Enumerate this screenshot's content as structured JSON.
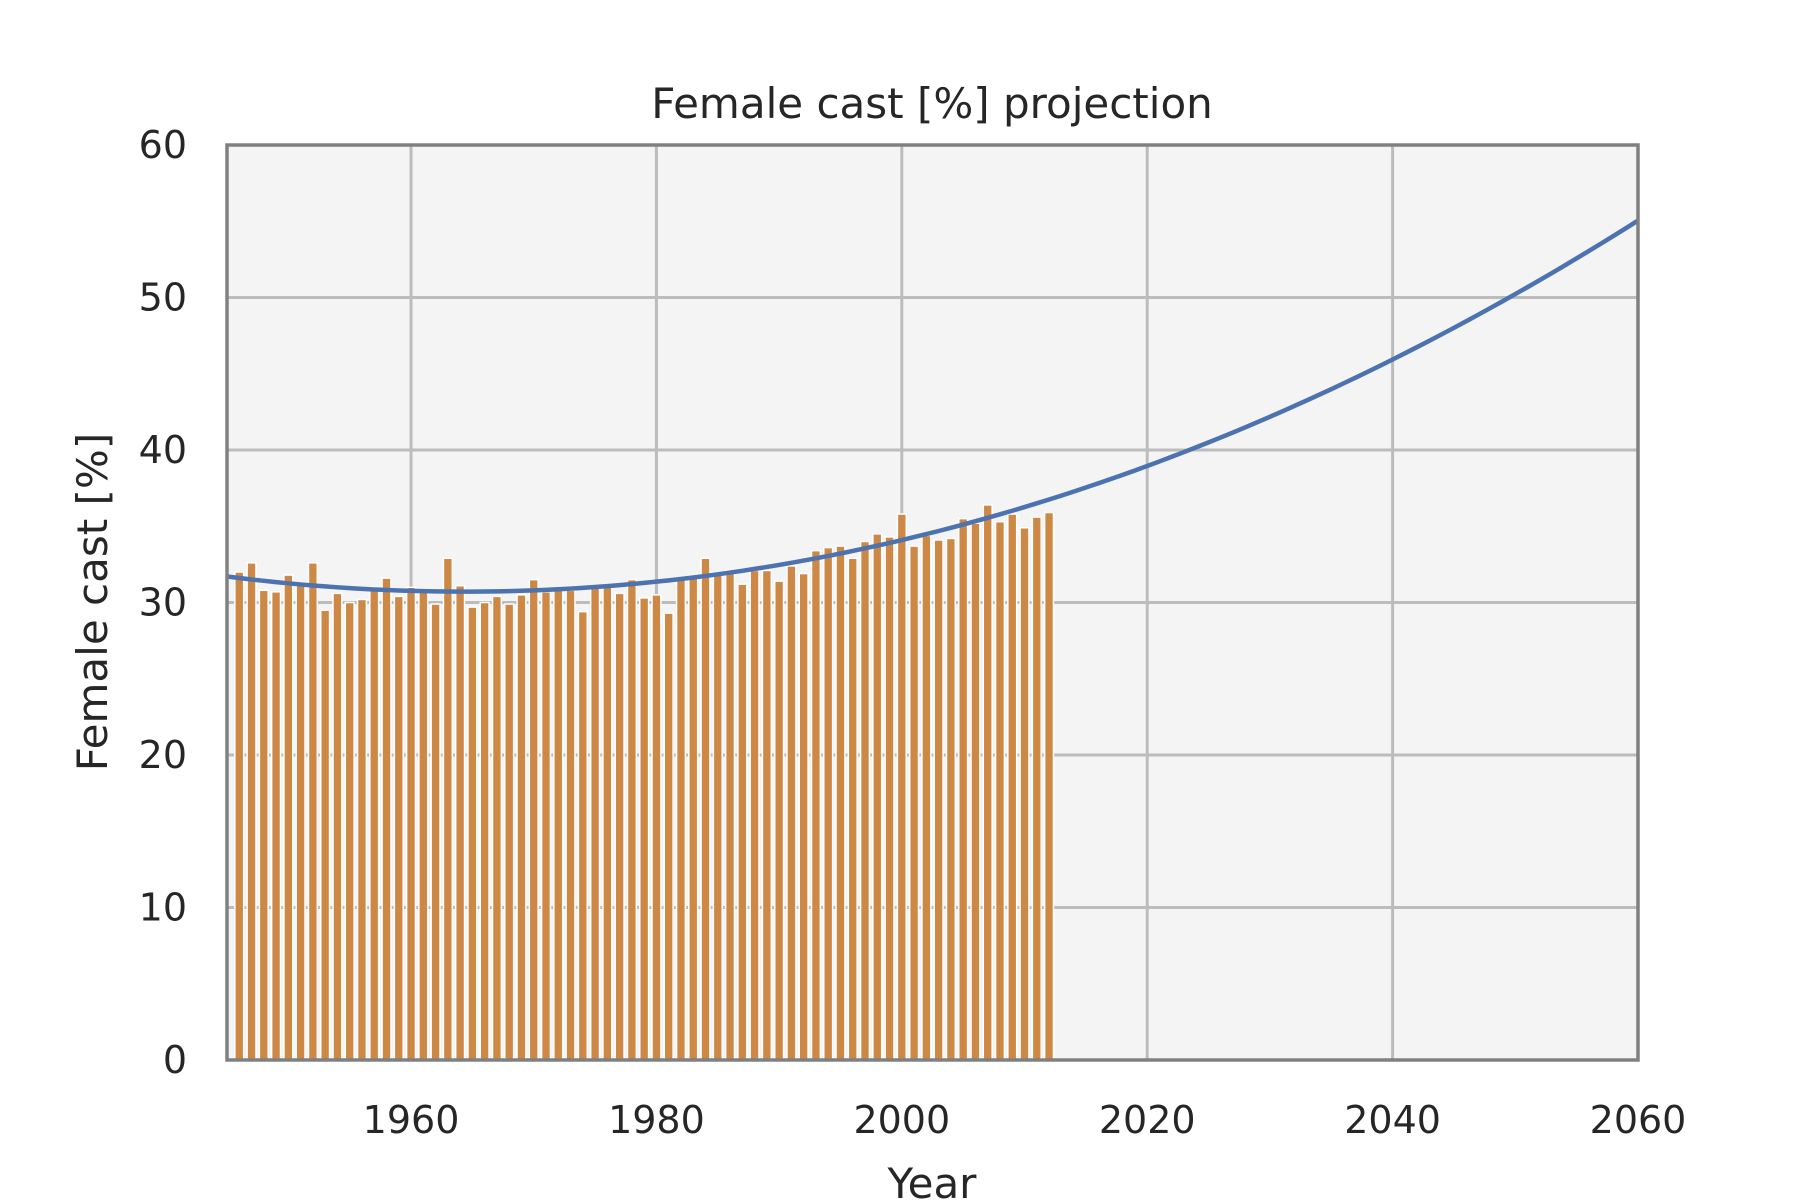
{
  "chart_data": {
    "type": "bar",
    "title": "Female cast [%] projection",
    "xlabel": "Year",
    "ylabel": "Female cast [%]",
    "xlim": [
      1945,
      2060
    ],
    "ylim": [
      0,
      60
    ],
    "xticks": [
      1960,
      1980,
      2000,
      2020,
      2040,
      2060
    ],
    "yticks": [
      0,
      10,
      20,
      30,
      40,
      50,
      60
    ],
    "grid": true,
    "background": "#f4f4f4",
    "colors": {
      "bars": "#cc8844",
      "trend": "#4c72b0",
      "frame": "#808080",
      "grid": "#bcbcbc"
    },
    "x": [
      1946,
      1947,
      1948,
      1949,
      1950,
      1951,
      1952,
      1953,
      1954,
      1955,
      1956,
      1957,
      1958,
      1959,
      1960,
      1961,
      1962,
      1963,
      1964,
      1965,
      1966,
      1967,
      1968,
      1969,
      1970,
      1971,
      1972,
      1973,
      1974,
      1975,
      1976,
      1977,
      1978,
      1979,
      1980,
      1981,
      1982,
      1983,
      1984,
      1985,
      1986,
      1987,
      1988,
      1989,
      1990,
      1991,
      1992,
      1993,
      1994,
      1995,
      1996,
      1997,
      1998,
      1999,
      2000,
      2001,
      2002,
      2003,
      2004,
      2005,
      2006,
      2007,
      2008,
      2009,
      2010,
      2011,
      2012
    ],
    "values": [
      32.0,
      32.6,
      30.8,
      30.7,
      31.8,
      31.3,
      32.6,
      29.5,
      30.6,
      30.0,
      30.2,
      31.0,
      31.6,
      30.4,
      31.0,
      30.8,
      29.9,
      32.9,
      31.1,
      29.7,
      30.0,
      30.4,
      29.9,
      30.5,
      31.5,
      30.7,
      30.9,
      30.8,
      29.4,
      31.0,
      31.1,
      30.6,
      31.5,
      30.3,
      30.5,
      29.3,
      31.5,
      31.8,
      32.9,
      31.9,
      32.1,
      31.2,
      32.1,
      32.1,
      31.4,
      32.4,
      31.9,
      33.4,
      33.6,
      33.7,
      32.9,
      34.0,
      34.5,
      34.3,
      35.8,
      33.7,
      34.4,
      34.1,
      34.2,
      35.5,
      35.2,
      36.4,
      35.3,
      35.8,
      34.9,
      35.6,
      35.9
    ],
    "series": [
      {
        "type": "bar",
        "values_key": "values"
      },
      {
        "type": "line",
        "description": "quadratic fit",
        "points": [
          [
            1945,
            31.8
          ],
          [
            1950,
            31.2
          ],
          [
            1955,
            30.9
          ],
          [
            1960,
            30.7
          ],
          [
            1965,
            30.6
          ],
          [
            1970,
            30.8
          ],
          [
            1980,
            31.5
          ],
          [
            1990,
            32.6
          ],
          [
            2000,
            34.2
          ],
          [
            2010,
            36.3
          ],
          [
            2020,
            38.8
          ],
          [
            2030,
            42.0
          ],
          [
            2040,
            45.9
          ],
          [
            2050,
            50.3
          ],
          [
            2060,
            55.1
          ]
        ]
      }
    ]
  }
}
